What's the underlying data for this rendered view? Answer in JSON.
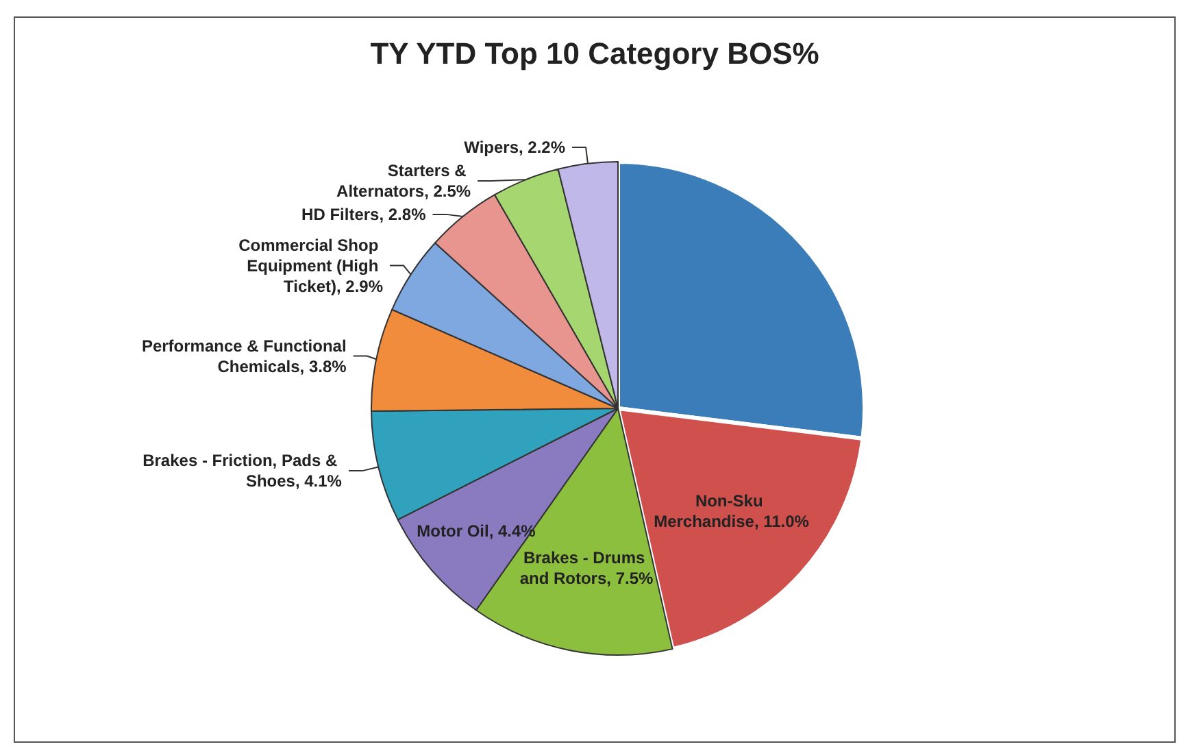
{
  "chart_data": {
    "type": "pie",
    "title": "TY YTD Top 10 Category BOS%",
    "categories": [
      null,
      "Non-Sku Merchandise",
      "Brakes - Drums and Rotors",
      "Motor Oil",
      "Brakes - Friction, Pads & Shoes",
      "Performance & Functional Chemicals",
      "Commercial Shop Equipment (High Ticket)",
      "HD Filters",
      "Starters & Alternators",
      "Wipers"
    ],
    "values": [
      15.2,
      11.0,
      7.5,
      4.4,
      4.1,
      3.8,
      2.9,
      2.8,
      2.5,
      2.2
    ],
    "value_labels": [
      null,
      "11.0%",
      "7.5%",
      "4.4%",
      "4.1%",
      "3.8%",
      "2.9%",
      "2.8%",
      "2.5%",
      "2.2%"
    ],
    "colors": [
      "#3a7db8",
      "#d0504d",
      "#8dbf3f",
      "#8a7bc0",
      "#31a2bd",
      "#f08c3c",
      "#7fa8e0",
      "#e8948f",
      "#a6d66f",
      "#c0b8e8"
    ],
    "legend": false
  }
}
